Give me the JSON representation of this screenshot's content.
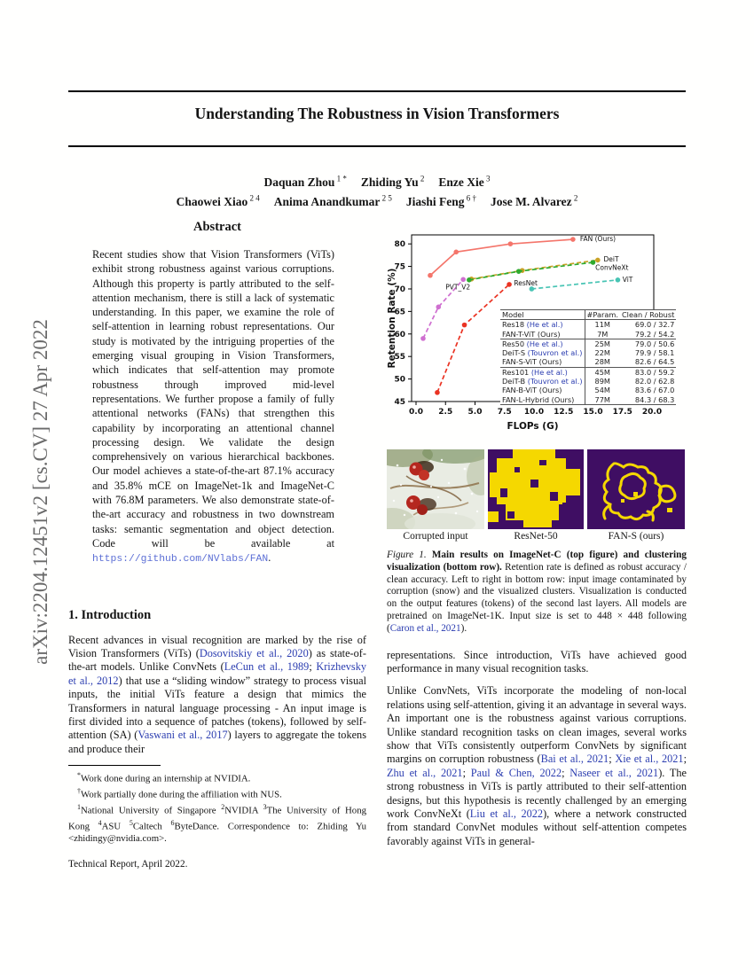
{
  "arxiv_banner": "arXiv:2204.12451v2  [cs.CV]  27 Apr 2022",
  "title": "Understanding The Robustness in Vision Transformers",
  "authors": {
    "lines": [
      [
        {
          "name": "Daquan Zhou",
          "sup": "1 *"
        },
        {
          "name": "Zhiding Yu",
          "sup": "2"
        },
        {
          "name": "Enze Xie",
          "sup": "3"
        }
      ],
      [
        {
          "name": "Chaowei Xiao",
          "sup": "2 4"
        },
        {
          "name": "Anima Anandkumar",
          "sup": "2 5"
        },
        {
          "name": "Jiashi Feng",
          "sup": "6 †"
        },
        {
          "name": "Jose M. Alvarez",
          "sup": "2"
        }
      ]
    ]
  },
  "abstract": {
    "heading": "Abstract",
    "segments": [
      {
        "t": "Recent studies show that Vision Transformers (ViTs) exhibit strong robustness against various corruptions. Although this property is partly attributed to the self-attention mechanism, there is still a lack of systematic understanding. In this paper, we examine the role of self-attention in learning robust representations. Our study is motivated by the intriguing properties of the emerging visual grouping in Vision Transformers, which indicates that self-attention may promote robustness through improved mid-level representations. We further propose a family of fully attentional networks (FANs) that strengthen this capability by incorporating an attentional channel processing design. We validate the design comprehensively on various hierarchical backbones. Our model achieves a state-of-the-art 87.1% accuracy and 35.8% mCE on ImageNet-1k and ImageNet-C with 76.8M parameters. We also demonstrate state-of-the-art accuracy and robustness in two downstream tasks: semantic segmentation and object detection. Code will be available at "
      },
      {
        "t": "https://github.com/NVlabs/FAN",
        "s": "monolink"
      },
      {
        "t": "."
      }
    ]
  },
  "intro": {
    "heading": "1. Introduction",
    "p1": [
      {
        "t": "Recent advances in visual recognition are marked by the rise of Vision Transformers (ViTs) ("
      },
      {
        "t": "Dosovitskiy et al., 2020",
        "s": "link"
      },
      {
        "t": ") as state-of-the-art models. Unlike ConvNets ("
      },
      {
        "t": "LeCun et al., 1989",
        "s": "link"
      },
      {
        "t": "; "
      },
      {
        "t": "Krizhevsky et al., 2012",
        "s": "link"
      },
      {
        "t": ") that use a “sliding window” strategy to process visual inputs, the initial ViTs feature a design that mimics the Transformers in natural language processing - An input image is first divided into a sequence of patches (tokens), followed by self-attention (SA) ("
      },
      {
        "t": "Vaswani et al., 2017",
        "s": "link"
      },
      {
        "t": ") layers to aggregate the tokens and produce their"
      }
    ]
  },
  "footnotes": {
    "f1": [
      {
        "t": "*",
        "s": "sup"
      },
      {
        "t": "Work done during an internship at NVIDIA."
      }
    ],
    "f2": [
      {
        "t": "†",
        "s": "sup"
      },
      {
        "t": "Work partially done during the affiliation with NUS."
      }
    ],
    "f3": [
      {
        "t": "1",
        "s": "sup"
      },
      {
        "t": "National University of Singapore "
      },
      {
        "t": "2",
        "s": "sup"
      },
      {
        "t": "NVIDIA "
      },
      {
        "t": "3",
        "s": "sup"
      },
      {
        "t": "The University of Hong Kong "
      },
      {
        "t": "4",
        "s": "sup"
      },
      {
        "t": "ASU "
      },
      {
        "t": "5",
        "s": "sup"
      },
      {
        "t": "Caltech "
      },
      {
        "t": "6",
        "s": "sup"
      },
      {
        "t": "ByteDance. Correspondence to: Zhiding Yu <zhidingy@nvidia.com>."
      }
    ],
    "f4": [
      {
        "t": "Technical Report, April 2022."
      }
    ]
  },
  "figure": {
    "panel_labels": [
      "Corrupted input",
      "ResNet-50",
      "FAN-S (ours)"
    ],
    "caption": [
      {
        "t": "Figure 1.",
        "s": "italic"
      },
      {
        "t": " Main results on ImageNet-C (top figure) and clustering visualization (bottom row).",
        "s": "boldrun"
      },
      {
        "t": " Retention rate is defined as robust accuracy / clean accuracy. Left to right in bottom row: input image contaminated by corruption (snow) and the visualized clusters. Visualization is conducted on the output features (tokens) of the second last layers. All models are pretrained on ImageNet-1K. Input size is set to 448 × 448 following ("
      },
      {
        "t": "Caron et al., 2021",
        "s": "link"
      },
      {
        "t": ")."
      }
    ]
  },
  "right_col": {
    "p1": [
      {
        "t": "representations.  Since introduction, ViTs have achieved good performance in many visual recognition tasks."
      }
    ],
    "p2": [
      {
        "t": "Unlike ConvNets, ViTs incorporate the modeling of non-local relations using self-attention, giving it an advantage in several ways. An important one is the robustness against various corruptions. Unlike standard recognition tasks on clean images, several works show that ViTs consistently outperform ConvNets by significant margins on corruption robustness ("
      },
      {
        "t": "Bai et al., 2021",
        "s": "link"
      },
      {
        "t": "; "
      },
      {
        "t": "Xie et al., 2021",
        "s": "link"
      },
      {
        "t": "; "
      },
      {
        "t": "Zhu et al., 2021",
        "s": "link"
      },
      {
        "t": "; "
      },
      {
        "t": "Paul & Chen, 2022",
        "s": "link"
      },
      {
        "t": "; "
      },
      {
        "t": "Naseer et al., 2021",
        "s": "link"
      },
      {
        "t": "). The strong robustness in ViTs is partly attributed to their self-attention designs, but this hypothesis is recently challenged by an emerging work ConvNeXt ("
      },
      {
        "t": "Liu et al., 2022",
        "s": "link"
      },
      {
        "t": "), where a network constructed from standard ConvNet modules without self-attention competes favorably against ViTs in general-"
      }
    ]
  },
  "chart_data": {
    "type": "line",
    "title": "",
    "xlabel": "FLOPs (G)",
    "ylabel": "Retention Rate (%)",
    "xlim": [
      0,
      20
    ],
    "ylim": [
      45,
      82
    ],
    "xticks": [
      0,
      2.5,
      5,
      7.5,
      10,
      12.5,
      15,
      17.5,
      20
    ],
    "yticks": [
      45,
      50,
      55,
      60,
      65,
      70,
      75,
      80
    ],
    "grid": false,
    "series": [
      {
        "name": "FAN (Ours)",
        "color": "#f4756b",
        "style": "solid",
        "x": [
          1.2,
          3.4,
          8.0,
          13.3
        ],
        "y": [
          73.0,
          78.2,
          80.0,
          81.0
        ],
        "label": {
          "x": 13.9,
          "y": 81.1
        }
      },
      {
        "name": "DeiT",
        "color": "#c9a227",
        "style": "dashed",
        "x": [
          4.7,
          9.0,
          15.4
        ],
        "y": [
          72.2,
          74.1,
          76.4
        ],
        "label": {
          "x": 15.9,
          "y": 76.6
        }
      },
      {
        "name": "ConvNeXt",
        "color": "#2eaa2e",
        "style": "dashed",
        "x": [
          4.5,
          8.7,
          15.0
        ],
        "y": [
          72.0,
          73.9,
          75.9
        ],
        "label": {
          "x": 15.2,
          "y": 74.7
        }
      },
      {
        "name": "ViT",
        "color": "#48c4b4",
        "style": "dashed",
        "x": [
          9.8,
          17.1
        ],
        "y": [
          70.0,
          72.0
        ],
        "label": {
          "x": 17.5,
          "y": 72.1
        }
      },
      {
        "name": "PVT_V2",
        "color": "#cf6fd0",
        "style": "dashed",
        "x": [
          0.6,
          1.9,
          4.0
        ],
        "y": [
          59.0,
          66.0,
          72.1
        ],
        "label": {
          "x": 2.5,
          "y": 70.4
        }
      },
      {
        "name": "ResNet",
        "color": "#ea3323",
        "style": "dashed",
        "x": [
          1.8,
          4.1,
          7.9
        ],
        "y": [
          47.0,
          62.0,
          71.0
        ],
        "label": {
          "x": 8.3,
          "y": 71.3
        }
      }
    ],
    "inset_table": {
      "headers": [
        "Model",
        "#Param.",
        "Clean / Robust"
      ],
      "rows": [
        {
          "model": "Res18 ",
          "cite": "(He et al.)",
          "cite_blue": true,
          "params": "11M",
          "scores": "69.0 / 32.7",
          "sep": false
        },
        {
          "model": "FAN-T-ViT ",
          "cite": "(Ours)",
          "cite_blue": false,
          "params": "7M",
          "scores": "79.2 / 54.2",
          "sep": true
        },
        {
          "model": "Res50 ",
          "cite": "(He et al.)",
          "cite_blue": true,
          "params": "25M",
          "scores": "79.0 / 50.6",
          "sep": false
        },
        {
          "model": "DeiT-S ",
          "cite": "(Touvron et al.)",
          "cite_blue": true,
          "params": "22M",
          "scores": "79.9 / 58.1",
          "sep": false
        },
        {
          "model": "FAN-S-ViT ",
          "cite": "(Ours)",
          "cite_blue": false,
          "params": "28M",
          "scores": "82.6 / 64.5",
          "sep": true
        },
        {
          "model": "Res101 ",
          "cite": "(He et al.)",
          "cite_blue": true,
          "params": "45M",
          "scores": "83.0 / 59.2",
          "sep": false
        },
        {
          "model": "DeiT-B ",
          "cite": "(Touvron et al.)",
          "cite_blue": true,
          "params": "89M",
          "scores": "82.0 / 62.8",
          "sep": false
        },
        {
          "model": "FAN-B-ViT ",
          "cite": "(Ours)",
          "cite_blue": false,
          "params": "54M",
          "scores": "83.6 / 67.0",
          "sep": false
        },
        {
          "model": "FAN-L-Hybrid ",
          "cite": "(Ours)",
          "cite_blue": false,
          "params": "77M",
          "scores": "84.3 / 68.3",
          "sep": false
        }
      ]
    }
  }
}
